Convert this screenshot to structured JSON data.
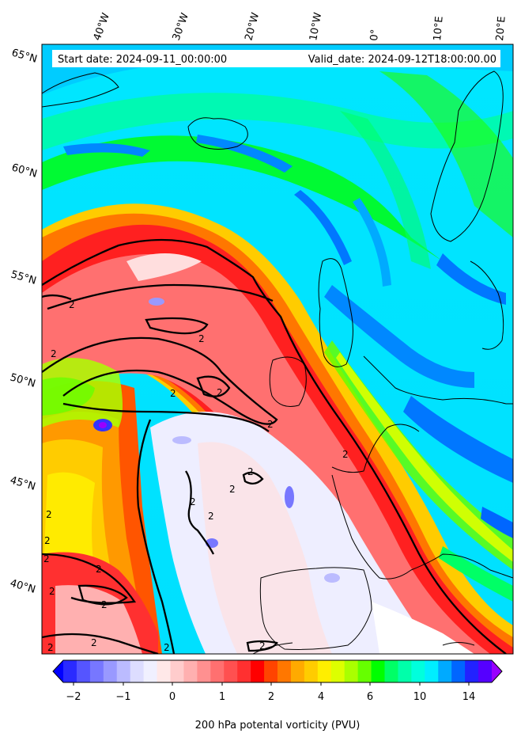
{
  "header": {
    "start_label": "Start date: 2024-09-11_00:00:00",
    "valid_label": "Valid_date: 2024-09-12T18:00:00.00"
  },
  "map": {
    "projection": "lambert-conformal",
    "lon_labels": [
      "40°W",
      "30°W",
      "20°W",
      "10°W",
      "0°",
      "10°E",
      "20°E"
    ],
    "lat_labels": [
      "65°N",
      "60°N",
      "55°N",
      "50°N",
      "45°N",
      "40°N"
    ],
    "contour_level_label": "2",
    "coastline_color": "#000000",
    "contour_color": "#000000"
  },
  "colorbar": {
    "title": "200 hPa potental vorticity (PVU)",
    "tick_labels": [
      "−2",
      "−1",
      "0",
      "1",
      "2",
      "4",
      "6",
      "10",
      "14"
    ],
    "colors": [
      "#0000ff",
      "#2a2aff",
      "#5555ff",
      "#7777ff",
      "#9999ff",
      "#bbbbff",
      "#ddddff",
      "#f0f0ff",
      "#ffe8e8",
      "#ffcccc",
      "#ffb0b0",
      "#ff9090",
      "#ff7070",
      "#ff5050",
      "#ff3030",
      "#ff0000",
      "#ff4400",
      "#ff7700",
      "#ffaa00",
      "#ffcc00",
      "#ffee00",
      "#ddff00",
      "#aaff00",
      "#66ff00",
      "#00ff00",
      "#00ff66",
      "#00ffaa",
      "#00ffdd",
      "#00eeff",
      "#00aaff",
      "#0066ff",
      "#2222ff",
      "#5500ff",
      "#9900ff"
    ]
  }
}
